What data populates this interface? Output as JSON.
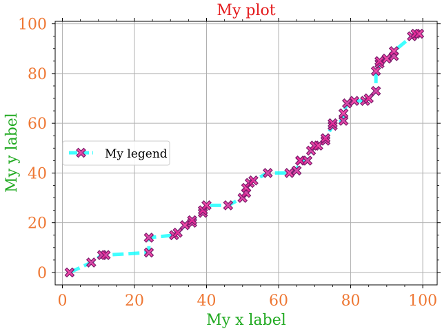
{
  "chart_data": {
    "type": "line",
    "title": "My plot",
    "xlabel": "My x label",
    "ylabel": "My y label",
    "xlim": [
      -2,
      104
    ],
    "ylim": [
      -5,
      101
    ],
    "xticks": [
      "0",
      "20",
      "40",
      "60",
      "80",
      "100"
    ],
    "yticks": [
      "0",
      "20",
      "40",
      "60",
      "80",
      "100"
    ],
    "grid": true,
    "legend_position": "center-left",
    "colors": {
      "title": "#e41a1c",
      "axis_label": "#22aa22",
      "tick_label": "#ee7733",
      "line": "#00ffff",
      "marker_fill": "#ee2a9a",
      "marker_edge": "#7a1a6a"
    },
    "series": [
      {
        "name": "My legend",
        "linestyle": "dashed",
        "marker": "X",
        "x": [
          2,
          8,
          11,
          12,
          24,
          24,
          31,
          32,
          34,
          36,
          36,
          39,
          39,
          40,
          46,
          50,
          51,
          51,
          52,
          53,
          57,
          63,
          65,
          66,
          66,
          68,
          69,
          70,
          71,
          73,
          73,
          75,
          75,
          78,
          78,
          79,
          81,
          84,
          85,
          87,
          87,
          88,
          88,
          90,
          92,
          92,
          97,
          98,
          99
        ],
        "y": [
          0,
          4,
          7,
          7,
          8,
          14,
          15,
          16,
          19,
          20,
          21,
          24,
          25,
          27,
          27,
          30,
          32,
          34,
          36,
          37,
          40,
          40,
          41,
          45,
          45,
          45,
          49,
          51,
          51,
          53,
          54,
          59,
          60,
          61,
          64,
          68,
          69,
          69,
          70,
          73,
          81,
          84,
          85,
          86,
          87,
          89,
          95,
          96,
          96
        ]
      }
    ]
  }
}
